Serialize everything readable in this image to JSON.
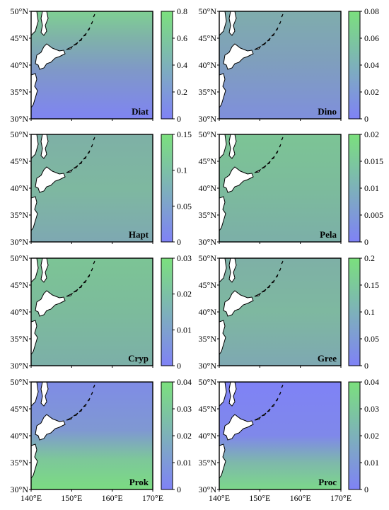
{
  "latitude_ticks": [
    "50°N",
    "45°N",
    "40°N",
    "35°N",
    "30°N"
  ],
  "longitude_ticks": [
    "140°E",
    "150°E",
    "160°E",
    "170°E"
  ],
  "colors": {
    "scale_low": "#7f82f6",
    "scale_high": "#7be07d",
    "land": "#ffffff",
    "coastline": "#000000"
  },
  "panels": [
    {
      "label": "Diat",
      "colorbar": {
        "ticks": [
          "0",
          "0.2",
          "0.4",
          "0.6",
          "0.8"
        ]
      },
      "pattern": "north_high"
    },
    {
      "label": "Dino",
      "colorbar": {
        "ticks": [
          "0",
          "0.02",
          "0.04",
          "0.06",
          "0.08"
        ]
      },
      "pattern": "north_mid"
    },
    {
      "label": "Hapt",
      "colorbar": {
        "ticks": [
          "0",
          "0.05",
          "0.1",
          "0.15"
        ]
      },
      "pattern": "uniform_mid"
    },
    {
      "label": "Pela",
      "colorbar": {
        "ticks": [
          "0",
          "0.005",
          "0.01",
          "0.015",
          "0.02"
        ]
      },
      "pattern": "uniform_mid_high"
    },
    {
      "label": "Cryp",
      "colorbar": {
        "ticks": [
          "0",
          "0.01",
          "0.02",
          "0.03"
        ]
      },
      "pattern": "uniform_mid_high"
    },
    {
      "label": "Gree",
      "colorbar": {
        "ticks": [
          "0",
          "0.05",
          "0.1",
          "0.15",
          "0.2"
        ]
      },
      "pattern": "uniform_mid"
    },
    {
      "label": "Prok",
      "colorbar": {
        "ticks": [
          "0",
          "0.01",
          "0.02",
          "0.03",
          "0.04"
        ]
      },
      "pattern": "south_high"
    },
    {
      "label": "Proc",
      "colorbar": {
        "ticks": [
          "0",
          "0.01",
          "0.02",
          "0.03",
          "0.04"
        ]
      },
      "pattern": "south_high_strong"
    }
  ]
}
